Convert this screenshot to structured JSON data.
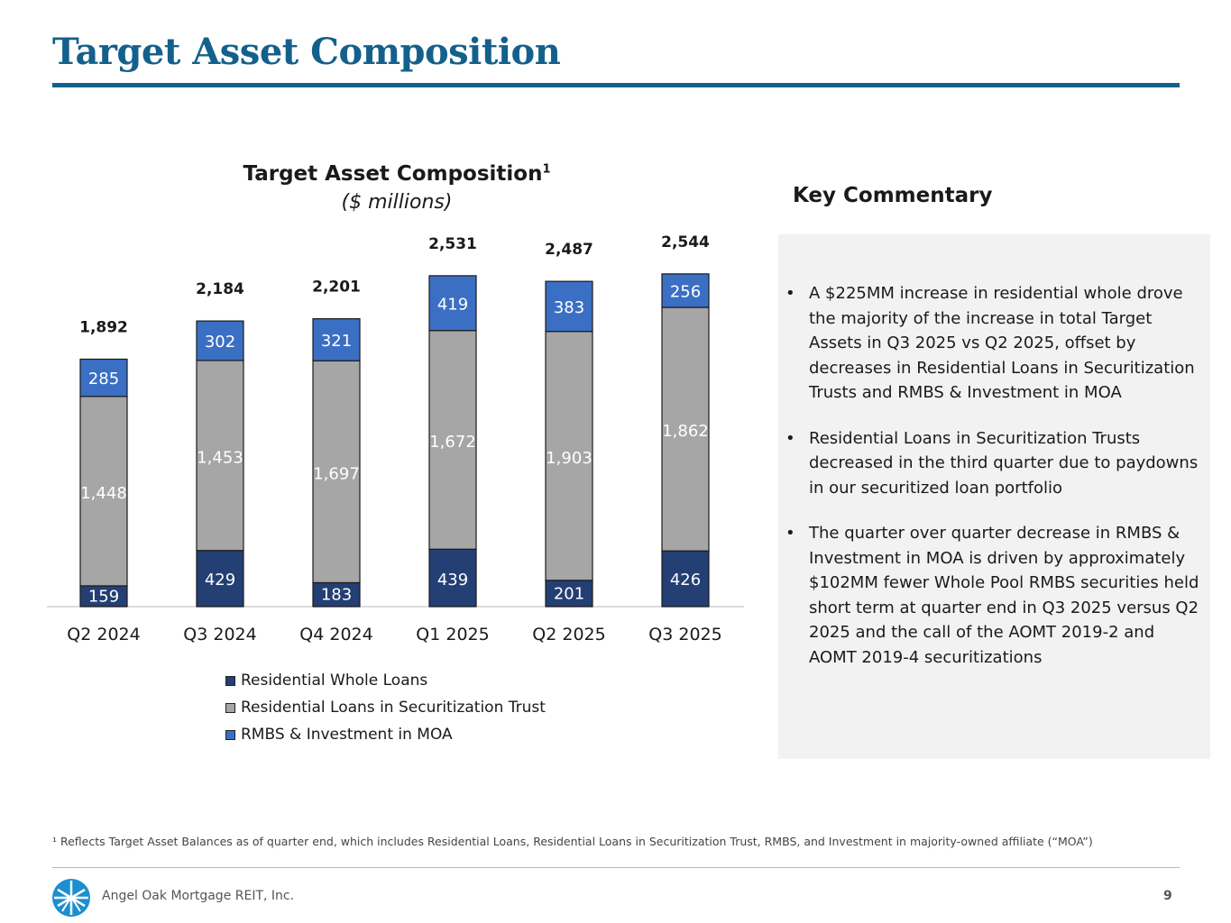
{
  "page": {
    "title": "Target Asset Composition",
    "company": "Angel Oak Mortgage REIT, Inc.",
    "page_number": "9",
    "footnote": "¹ Reflects Target Asset Balances as of quarter end, which includes Residential Loans, Residential Loans in Securitization Trust, RMBS, and Investment in majority-owned affiliate (“MOA”)"
  },
  "chart_data": {
    "type": "bar",
    "stacked": true,
    "title": "Target Asset Composition",
    "title_superscript": "1",
    "subtitle": "($ millions)",
    "categories": [
      "Q2 2024",
      "Q3 2024",
      "Q4 2024",
      "Q1 2025",
      "Q2 2025",
      "Q3 2025"
    ],
    "series": [
      {
        "name": "Residential Whole Loans",
        "values": [
          159,
          429,
          183,
          439,
          201,
          426
        ],
        "color": "#243f73"
      },
      {
        "name": "Residential Loans in Securitization Trust",
        "values": [
          1448,
          1453,
          1697,
          1672,
          1903,
          1862
        ],
        "color": "#a6a6a6"
      },
      {
        "name": "RMBS & Investment in MOA",
        "values": [
          285,
          302,
          321,
          419,
          383,
          256
        ],
        "color": "#3a6fc4"
      }
    ],
    "totals": [
      1892,
      2184,
      2201,
      2531,
      2487,
      2544
    ],
    "legend_position": "bottom",
    "grid": false,
    "ylim": [
      0,
      2650
    ]
  },
  "commentary": {
    "heading": "Key Commentary",
    "bullets": [
      "A $225MM increase in residential whole drove the majority of the increase in total Target Assets in Q3 2025 vs Q2 2025, offset by decreases in Residential Loans in Securitization Trusts and RMBS & Investment in MOA",
      "Residential Loans in Securitization Trusts decreased in the third quarter due to paydowns in our securitized loan portfolio",
      "The quarter over quarter decrease in RMBS & Investment in MOA is driven by approximately $102MM fewer Whole Pool RMBS securities held short term at quarter end in Q3 2025 versus Q2 2025 and the call of the AOMT 2019-2 and AOMT 2019-4 securitizations"
    ]
  },
  "colors": {
    "brand": "#14608c",
    "panel": "#f2f2f2"
  }
}
